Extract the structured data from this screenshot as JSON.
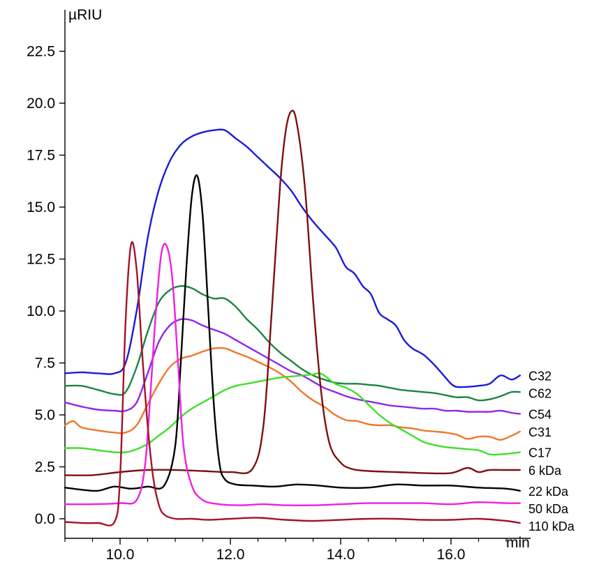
{
  "chart_data": {
    "type": "line",
    "xlabel": "min",
    "ylabel": "µRIU",
    "xlim": [
      9.0,
      17.3
    ],
    "ylim": [
      -0.4,
      24.0
    ],
    "x_ticks": [
      10.0,
      12.0,
      14.0,
      16.0
    ],
    "x_tick_labels": [
      "10.0",
      "12.0",
      "14.0",
      "16.0"
    ],
    "x_minor_ticks": [
      9.0,
      9.5,
      10.5,
      11.0,
      11.5,
      12.5,
      13.0,
      13.5,
      14.5,
      15.0,
      15.5,
      16.5,
      17.0
    ],
    "y_ticks": [
      0.0,
      2.5,
      5.0,
      7.5,
      10.0,
      12.5,
      15.0,
      17.5,
      20.0,
      22.5
    ],
    "y_tick_labels": [
      "0.0",
      "2.5",
      "5.0",
      "7.5",
      "10.0",
      "12.5",
      "15.0",
      "17.5",
      "20.0",
      "22.5"
    ],
    "grid": false,
    "legend": "right, labels at series ends",
    "series": [
      {
        "name": "C32",
        "color": "#1a1adb",
        "x": [
          9.0,
          9.3,
          9.6,
          9.9,
          10.1,
          10.3,
          10.5,
          10.7,
          10.9,
          11.1,
          11.3,
          11.5,
          11.7,
          11.9,
          12.1,
          12.3,
          12.5,
          12.7,
          12.9,
          13.1,
          13.3,
          13.5,
          13.7,
          13.9,
          14.0,
          14.1,
          14.25,
          14.4,
          14.55,
          14.7,
          14.85,
          15.0,
          15.15,
          15.3,
          15.5,
          15.7,
          15.9,
          16.0,
          16.1,
          16.3,
          16.5,
          16.7,
          16.9,
          17.1,
          17.25
        ],
        "y": [
          7.0,
          7.05,
          7.0,
          7.0,
          7.5,
          10.0,
          13.5,
          15.8,
          17.2,
          18.0,
          18.4,
          18.6,
          18.7,
          18.7,
          18.3,
          17.9,
          17.4,
          16.9,
          16.4,
          15.8,
          15.0,
          14.3,
          13.7,
          13.1,
          12.6,
          12.1,
          11.8,
          11.2,
          10.8,
          9.9,
          9.6,
          9.3,
          8.6,
          8.2,
          7.9,
          7.4,
          6.8,
          6.5,
          6.35,
          6.35,
          6.4,
          6.5,
          6.9,
          6.7,
          6.9
        ]
      },
      {
        "name": "C62",
        "color": "#1b8445",
        "x": [
          9.0,
          9.3,
          9.6,
          9.9,
          10.1,
          10.3,
          10.5,
          10.7,
          10.9,
          11.1,
          11.3,
          11.5,
          11.7,
          11.9,
          12.1,
          12.3,
          12.5,
          12.7,
          12.9,
          13.1,
          13.3,
          13.5,
          13.7,
          13.9,
          14.1,
          14.3,
          14.5,
          14.7,
          14.9,
          15.1,
          15.3,
          15.5,
          15.7,
          15.9,
          16.1,
          16.3,
          16.5,
          16.7,
          16.9,
          17.1,
          17.25
        ],
        "y": [
          6.4,
          6.4,
          6.2,
          6.0,
          6.1,
          7.3,
          9.0,
          10.4,
          11.0,
          11.2,
          11.1,
          10.8,
          10.6,
          10.6,
          10.2,
          9.6,
          9.1,
          8.5,
          8.0,
          7.6,
          7.2,
          6.9,
          6.7,
          6.55,
          6.5,
          6.5,
          6.45,
          6.4,
          6.3,
          6.2,
          6.15,
          6.1,
          6.05,
          5.95,
          5.85,
          5.85,
          5.7,
          5.75,
          5.9,
          6.1,
          6.1
        ]
      },
      {
        "name": "C54",
        "color": "#9127ea",
        "x": [
          9.0,
          9.3,
          9.6,
          9.9,
          10.1,
          10.3,
          10.5,
          10.7,
          10.9,
          11.1,
          11.3,
          11.5,
          11.7,
          11.9,
          12.1,
          12.3,
          12.5,
          12.7,
          12.9,
          13.1,
          13.3,
          13.5,
          13.7,
          13.9,
          14.1,
          14.3,
          14.5,
          14.7,
          14.9,
          15.1,
          15.3,
          15.5,
          15.7,
          15.9,
          16.1,
          16.3,
          16.5,
          16.7,
          16.9,
          17.1,
          17.25
        ],
        "y": [
          5.6,
          5.4,
          5.25,
          5.2,
          5.2,
          5.6,
          7.0,
          8.5,
          9.3,
          9.6,
          9.55,
          9.3,
          9.1,
          8.9,
          8.6,
          8.3,
          8.0,
          7.7,
          7.4,
          7.1,
          6.9,
          6.6,
          6.3,
          6.1,
          5.9,
          5.75,
          5.65,
          5.55,
          5.45,
          5.4,
          5.35,
          5.3,
          5.3,
          5.2,
          5.2,
          5.15,
          5.15,
          5.15,
          5.2,
          5.1,
          5.05
        ]
      },
      {
        "name": "C31",
        "color": "#f0762a",
        "x": [
          9.0,
          9.15,
          9.3,
          9.6,
          9.9,
          10.1,
          10.3,
          10.5,
          10.7,
          10.9,
          11.1,
          11.3,
          11.5,
          11.7,
          11.9,
          12.1,
          12.3,
          12.5,
          12.7,
          12.9,
          13.1,
          13.3,
          13.5,
          13.7,
          13.9,
          14.1,
          14.3,
          14.5,
          14.7,
          14.9,
          15.1,
          15.3,
          15.5,
          15.7,
          15.9,
          16.1,
          16.3,
          16.5,
          16.7,
          16.9,
          17.1,
          17.25
        ],
        "y": [
          4.5,
          4.7,
          4.4,
          4.25,
          4.15,
          4.15,
          4.5,
          5.5,
          6.5,
          7.3,
          7.7,
          7.85,
          8.05,
          8.2,
          8.2,
          8.0,
          7.8,
          7.55,
          7.3,
          7.0,
          6.6,
          6.1,
          5.7,
          5.4,
          5.0,
          4.75,
          4.7,
          4.55,
          4.5,
          4.5,
          4.4,
          4.35,
          4.25,
          4.2,
          4.15,
          4.05,
          3.85,
          3.95,
          3.95,
          3.8,
          4.0,
          4.2
        ]
      },
      {
        "name": "C17",
        "color": "#3de02a",
        "x": [
          9.0,
          9.3,
          9.6,
          9.9,
          10.1,
          10.3,
          10.5,
          10.7,
          10.9,
          11.1,
          11.3,
          11.5,
          11.7,
          11.9,
          12.1,
          12.3,
          12.5,
          12.7,
          12.9,
          13.1,
          13.3,
          13.5,
          13.6,
          13.7,
          13.9,
          14.1,
          14.3,
          14.5,
          14.7,
          14.9,
          15.1,
          15.3,
          15.5,
          15.7,
          15.9,
          16.1,
          16.3,
          16.5,
          16.7,
          16.9,
          17.1,
          17.25
        ],
        "y": [
          3.4,
          3.4,
          3.3,
          3.2,
          3.2,
          3.35,
          3.6,
          4.0,
          4.4,
          4.9,
          5.3,
          5.6,
          5.9,
          6.2,
          6.4,
          6.5,
          6.6,
          6.7,
          6.8,
          6.85,
          6.9,
          6.95,
          7.0,
          6.9,
          6.5,
          6.3,
          6.0,
          5.5,
          5.0,
          4.6,
          4.3,
          4.0,
          3.7,
          3.55,
          3.45,
          3.4,
          3.35,
          3.3,
          3.1,
          3.1,
          3.15,
          3.2
        ]
      },
      {
        "name": "6 kDa",
        "color": "#7d1010",
        "x": [
          9.0,
          9.5,
          10.0,
          10.5,
          11.0,
          11.5,
          12.0,
          12.4,
          12.6,
          12.75,
          12.9,
          13.0,
          13.1,
          13.2,
          13.35,
          13.5,
          13.65,
          13.8,
          14.0,
          14.2,
          14.5,
          15.0,
          15.5,
          16.0,
          16.3,
          16.5,
          16.7,
          17.0,
          17.25
        ],
        "y": [
          2.1,
          2.1,
          2.25,
          2.35,
          2.35,
          2.3,
          2.25,
          2.4,
          4.5,
          10.0,
          16.0,
          18.6,
          19.6,
          19.1,
          16.0,
          10.5,
          6.0,
          3.6,
          2.7,
          2.4,
          2.3,
          2.25,
          2.2,
          2.2,
          2.45,
          2.25,
          2.35,
          2.35,
          2.35
        ]
      },
      {
        "name": "22 kDa",
        "color": "#000000",
        "x": [
          9.0,
          9.3,
          9.6,
          9.9,
          10.2,
          10.5,
          10.8,
          11.0,
          11.1,
          11.2,
          11.3,
          11.4,
          11.5,
          11.6,
          11.7,
          11.8,
          11.9,
          12.1,
          12.4,
          12.8,
          13.2,
          13.6,
          14.0,
          14.5,
          15.0,
          15.5,
          16.0,
          16.5,
          17.0,
          17.25
        ],
        "y": [
          1.5,
          1.4,
          1.35,
          1.55,
          1.45,
          1.55,
          1.6,
          3.5,
          7.5,
          12.0,
          15.5,
          16.5,
          14.5,
          10.0,
          5.5,
          2.7,
          1.9,
          1.65,
          1.6,
          1.55,
          1.65,
          1.6,
          1.5,
          1.5,
          1.65,
          1.6,
          1.6,
          1.5,
          1.45,
          1.35
        ]
      },
      {
        "name": "50 kDa",
        "color": "#f01fe0",
        "x": [
          9.0,
          9.5,
          10.0,
          10.3,
          10.45,
          10.55,
          10.65,
          10.75,
          10.85,
          10.95,
          11.05,
          11.15,
          11.3,
          11.5,
          11.8,
          12.2,
          12.6,
          13.0,
          13.5,
          14.0,
          14.5,
          15.0,
          15.5,
          16.0,
          16.5,
          17.0,
          17.25
        ],
        "y": [
          0.7,
          0.7,
          0.75,
          0.9,
          2.5,
          6.0,
          10.0,
          12.8,
          13.1,
          11.5,
          7.5,
          3.5,
          1.6,
          0.9,
          0.7,
          0.65,
          0.7,
          0.65,
          0.65,
          0.7,
          0.75,
          0.75,
          0.75,
          0.7,
          0.8,
          0.75,
          0.75
        ]
      },
      {
        "name": "110 kDa",
        "color": "#a3132b",
        "x": [
          9.0,
          9.3,
          9.6,
          9.9,
          10.0,
          10.1,
          10.2,
          10.3,
          10.4,
          10.5,
          10.6,
          10.7,
          10.8,
          11.0,
          11.3,
          11.6,
          12.0,
          12.5,
          13.0,
          13.5,
          14.0,
          14.5,
          15.0,
          15.5,
          16.0,
          16.5,
          17.0,
          17.25
        ],
        "y": [
          -0.15,
          -0.2,
          -0.2,
          -0.15,
          2.0,
          9.5,
          13.2,
          12.0,
          8.0,
          4.5,
          2.0,
          0.7,
          0.2,
          0.0,
          0.0,
          -0.05,
          0.0,
          0.05,
          -0.05,
          -0.1,
          -0.05,
          0.0,
          0.0,
          -0.05,
          -0.05,
          0.0,
          -0.1,
          -0.2
        ]
      }
    ]
  }
}
